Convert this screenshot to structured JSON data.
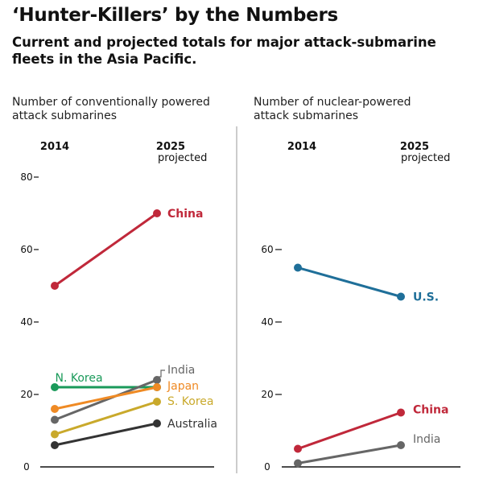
{
  "title": "‘Hunter-Killers’ by the Numbers",
  "subtitle": "Current and projected totals for major attack-submarine fleets in the Asia Pacific.",
  "chart_data": [
    {
      "type": "line",
      "label_lines": [
        "Number of conventionally powered",
        "attack submarines"
      ],
      "x": [
        "2014",
        "2025"
      ],
      "x_sublabel": [
        "",
        "projected"
      ],
      "yticks": [
        0,
        20,
        40,
        60,
        80
      ],
      "ylim": [
        0,
        80
      ],
      "series": [
        {
          "name": "China",
          "values": [
            50,
            70
          ],
          "color": "#c0283a",
          "bold": true
        },
        {
          "name": "N. Korea",
          "values": [
            22,
            22
          ],
          "color": "#1a9a5a",
          "bold": false
        },
        {
          "name": "India",
          "values": [
            13,
            24
          ],
          "color": "#666666",
          "bold": false
        },
        {
          "name": "Japan",
          "values": [
            16,
            22
          ],
          "color": "#ef8a24",
          "bold": false
        },
        {
          "name": "S. Korea",
          "values": [
            9,
            18
          ],
          "color": "#c9a92b",
          "bold": false
        },
        {
          "name": "Australia",
          "values": [
            6,
            12
          ],
          "color": "#333333",
          "bold": false
        }
      ]
    },
    {
      "type": "line",
      "label_lines": [
        "Number of nuclear-powered",
        "attack submarines"
      ],
      "x": [
        "2014",
        "2025"
      ],
      "x_sublabel": [
        "",
        "projected"
      ],
      "yticks": [
        0,
        20,
        40,
        60
      ],
      "ylim": [
        0,
        80
      ],
      "series": [
        {
          "name": "U.S.",
          "values": [
            55,
            47
          ],
          "color": "#1f6f99",
          "bold": true
        },
        {
          "name": "China",
          "values": [
            5,
            15
          ],
          "color": "#c0283a",
          "bold": true
        },
        {
          "name": "India",
          "values": [
            1,
            6
          ],
          "color": "#666666",
          "bold": false
        }
      ]
    }
  ]
}
